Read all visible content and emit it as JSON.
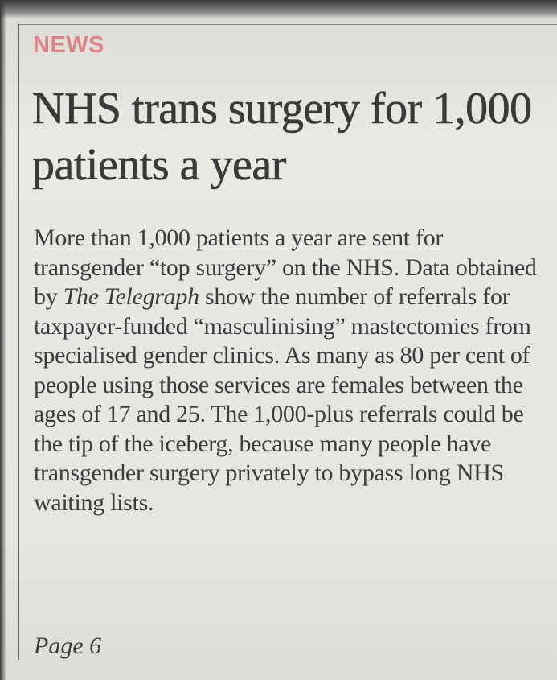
{
  "section": "NEWS",
  "headline": "NHS trans surgery for 1,000 patients a year",
  "body": [
    {
      "text": "More than 1,000 patients a year are sent for transgender “top surgery” on the NHS. Data obtained by ",
      "italic": false
    },
    {
      "text": "The Telegraph",
      "italic": true
    },
    {
      "text": " show the number of referrals for taxpayer-funded “masculinising” mastectomies from specialised gender clinics. As many as 80 per cent of people using those services are females between the ages of 17 and 25. The 1,000-plus referrals could be the tip of the iceberg, because many people have transgender surgery privately to bypass long NHS waiting lists.",
      "italic": false
    }
  ],
  "page_ref": "Page 6"
}
